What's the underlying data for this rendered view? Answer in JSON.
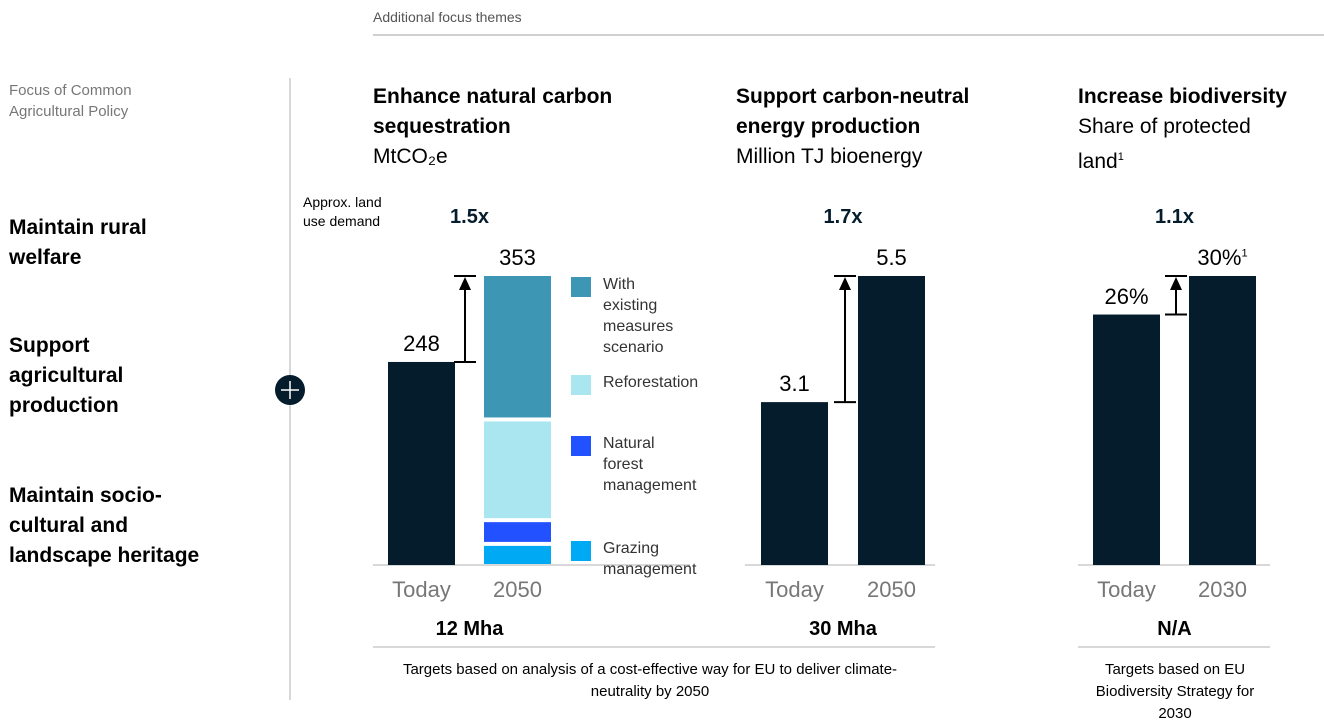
{
  "section_label": "Additional focus themes",
  "left": {
    "heading": "Focus of Common Agricultural Policy",
    "items": [
      "Maintain rural welfare",
      "Support agricultural production",
      "Maintain socio-cultural and landscape heritage"
    ]
  },
  "chart_data": [
    {
      "type": "bar",
      "title": "Enhance natural carbon sequestration",
      "subtitle": "MtCO₂e",
      "annotation": "Approx. land use demand",
      "ratio": "1.5x",
      "categories": [
        "Today",
        "2050"
      ],
      "values": [
        248,
        353
      ],
      "color": "#051c2c",
      "segments": [
        {
          "name": "With existing measures scenario",
          "color": "#3c96b4",
          "value": 174
        },
        {
          "name": "Reforestation",
          "color": "#aae6f0",
          "value": 123
        },
        {
          "name": "Natural forest management",
          "color": "#2251ff",
          "value": 29
        },
        {
          "name": "Grazing management",
          "color": "#00a9f4",
          "value": 27
        }
      ],
      "land": "12 Mha"
    },
    {
      "type": "bar",
      "title": "Support carbon-neutral energy production",
      "subtitle": "Million TJ bioenergy",
      "ratio": "1.7x",
      "categories": [
        "Today",
        "2050"
      ],
      "values": [
        3.1,
        5.5
      ],
      "color": "#051c2c",
      "land": "30 Mha"
    },
    {
      "type": "bar",
      "title": "Increase biodiversity",
      "subtitle": "Share of protected land",
      "footnote": "1",
      "ratio": "1.1x",
      "categories": [
        "Today",
        "2030"
      ],
      "values": [
        26,
        30
      ],
      "value_labels": [
        "26%",
        "30%"
      ],
      "color": "#051c2c",
      "land": "N/A"
    }
  ],
  "notes": [
    "Targets based on analysis of a cost-effective way for EU to deliver climate-neutrality by 2050",
    "Targets based on EU Biodiversity Strategy for 2030"
  ]
}
